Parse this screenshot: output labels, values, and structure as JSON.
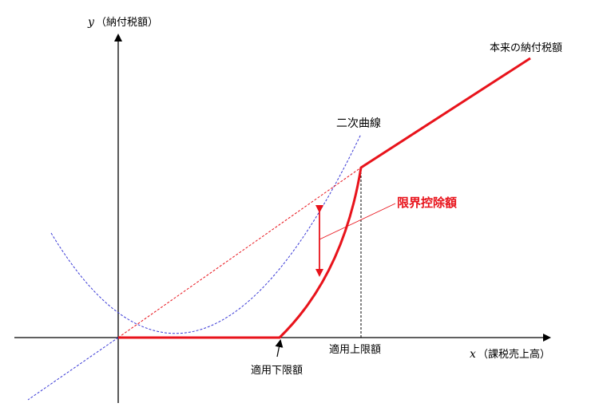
{
  "axes": {
    "y_label": "（納付税額）",
    "y_var": "y",
    "x_label": "（課税売上高）",
    "x_var": "x"
  },
  "labels": {
    "original_tax": "本来の納付税額",
    "quadratic_curve": "二次曲線",
    "limit_deduction": "限界控除額",
    "upper_limit": "適用上限額",
    "lower_limit": "適用下限額"
  },
  "colors": {
    "tax_line": "#e8131b",
    "parabola": "#3a3ad6",
    "axis": "#000000"
  }
}
